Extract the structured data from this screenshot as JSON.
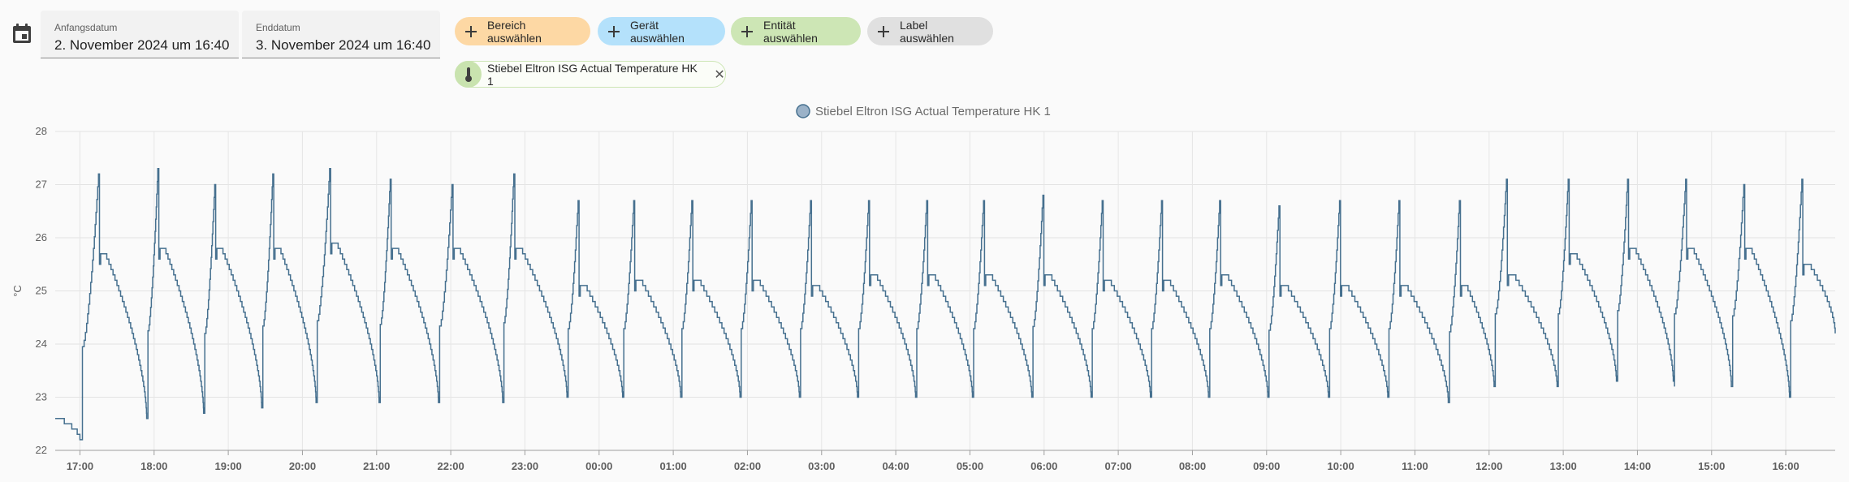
{
  "date_range": {
    "start_label": "Anfangsdatum",
    "start_value": "2. November 2024 um 16:40",
    "end_label": "Enddatum",
    "end_value": "3. November 2024 um 16:40"
  },
  "target_chips": {
    "area": "Bereich auswählen",
    "device": "Gerät auswählen",
    "entity": "Entität auswählen",
    "label": "Label auswählen"
  },
  "selected_entity": {
    "name": "Stiebel Eltron ISG Actual Temperature HK 1",
    "icon": "thermometer-icon",
    "remove_icon": "close-icon"
  },
  "colors": {
    "series": "#46708f",
    "area_chip": "#fdd8a4",
    "device_chip": "#b4e1fb",
    "entity_chip": "#cde6b5",
    "label_chip": "#e0e0e0"
  },
  "chart_data": {
    "type": "line",
    "legend_position": "top-center",
    "ylabel": "°C",
    "ylim": [
      22,
      28
    ],
    "yticks": [
      22,
      23,
      24,
      25,
      26,
      27,
      28
    ],
    "grid": true,
    "step": true,
    "x_start": "16:40",
    "x_end": "16:40",
    "xticks": [
      "17:00",
      "18:00",
      "19:00",
      "20:00",
      "21:00",
      "22:00",
      "23:00",
      "00:00",
      "01:00",
      "02:00",
      "03:00",
      "04:00",
      "05:00",
      "06:00",
      "07:00",
      "08:00",
      "09:00",
      "10:00",
      "11:00",
      "12:00",
      "13:00",
      "14:00",
      "15:00",
      "16:00"
    ],
    "series": [
      {
        "name": "Stiebel Eltron ISG Actual Temperature HK 1",
        "color": "#46708f",
        "x_start": "16:40",
        "trough_at_start": 22.6,
        "cycles": [
          {
            "rise": "17:02",
            "peak_time": "17:15",
            "low": 22.2,
            "peak": 27.2,
            "plateau": 25.7,
            "trough": 22.6
          },
          {
            "rise": "17:55",
            "peak_time": "18:03",
            "low": 22.6,
            "peak": 27.3,
            "plateau": 25.8,
            "trough": 22.7
          },
          {
            "rise": "18:41",
            "peak_time": "18:49",
            "low": 22.7,
            "peak": 27.0,
            "plateau": 25.8,
            "trough": 22.8
          },
          {
            "rise": "19:28",
            "peak_time": "19:36",
            "low": 22.8,
            "peak": 27.2,
            "plateau": 25.8,
            "trough": 22.9
          },
          {
            "rise": "20:12",
            "peak_time": "20:22",
            "low": 22.9,
            "peak": 27.3,
            "plateau": 25.9,
            "trough": 22.9
          },
          {
            "rise": "21:03",
            "peak_time": "21:11",
            "low": 22.9,
            "peak": 27.1,
            "plateau": 25.8,
            "trough": 22.9
          },
          {
            "rise": "21:51",
            "peak_time": "22:01",
            "low": 22.9,
            "peak": 27.0,
            "plateau": 25.8,
            "trough": 22.9
          },
          {
            "rise": "22:43",
            "peak_time": "22:51",
            "low": 22.9,
            "peak": 27.2,
            "plateau": 25.8,
            "trough": 23.0
          },
          {
            "rise": "23:35",
            "peak_time": "23:43",
            "low": 23.0,
            "peak": 26.7,
            "plateau": 25.1,
            "trough": 23.0
          },
          {
            "rise": "00:20",
            "peak_time": "00:28",
            "low": 23.0,
            "peak": 26.7,
            "plateau": 25.2,
            "trough": 23.0
          },
          {
            "rise": "01:07",
            "peak_time": "01:15",
            "low": 23.0,
            "peak": 26.7,
            "plateau": 25.2,
            "trough": 23.0
          },
          {
            "rise": "01:55",
            "peak_time": "02:03",
            "low": 23.0,
            "peak": 26.7,
            "plateau": 25.2,
            "trough": 23.0
          },
          {
            "rise": "02:43",
            "peak_time": "02:51",
            "low": 23.0,
            "peak": 26.7,
            "plateau": 25.1,
            "trough": 23.0
          },
          {
            "rise": "03:30",
            "peak_time": "03:38",
            "low": 23.0,
            "peak": 26.7,
            "plateau": 25.3,
            "trough": 23.0
          },
          {
            "rise": "04:17",
            "peak_time": "04:25",
            "low": 23.0,
            "peak": 26.7,
            "plateau": 25.3,
            "trough": 23.0
          },
          {
            "rise": "05:03",
            "peak_time": "05:11",
            "low": 23.0,
            "peak": 26.7,
            "plateau": 25.3,
            "trough": 23.0
          },
          {
            "rise": "05:51",
            "peak_time": "05:59",
            "low": 23.0,
            "peak": 26.8,
            "plateau": 25.3,
            "trough": 23.0
          },
          {
            "rise": "06:39",
            "peak_time": "06:47",
            "low": 23.0,
            "peak": 26.7,
            "plateau": 25.2,
            "trough": 23.0
          },
          {
            "rise": "07:27",
            "peak_time": "07:35",
            "low": 23.0,
            "peak": 26.7,
            "plateau": 25.2,
            "trough": 23.0
          },
          {
            "rise": "08:14",
            "peak_time": "08:22",
            "low": 23.0,
            "peak": 26.7,
            "plateau": 25.3,
            "trough": 23.0
          },
          {
            "rise": "09:02",
            "peak_time": "09:10",
            "low": 23.0,
            "peak": 26.6,
            "plateau": 25.1,
            "trough": 23.0
          },
          {
            "rise": "09:51",
            "peak_time": "09:59",
            "low": 23.0,
            "peak": 26.7,
            "plateau": 25.1,
            "trough": 23.0
          },
          {
            "rise": "10:39",
            "peak_time": "10:47",
            "low": 23.0,
            "peak": 26.7,
            "plateau": 25.1,
            "trough": 22.9
          },
          {
            "rise": "11:28",
            "peak_time": "11:36",
            "low": 22.9,
            "peak": 26.7,
            "plateau": 25.1,
            "trough": 23.2
          },
          {
            "rise": "12:05",
            "peak_time": "12:14",
            "low": 23.2,
            "peak": 27.1,
            "plateau": 25.3,
            "trough": 23.2
          },
          {
            "rise": "12:56",
            "peak_time": "13:04",
            "low": 23.2,
            "peak": 27.1,
            "plateau": 25.7,
            "trough": 23.3
          },
          {
            "rise": "13:44",
            "peak_time": "13:52",
            "low": 23.3,
            "peak": 27.1,
            "plateau": 25.8,
            "trough": 23.3
          },
          {
            "rise": "14:30",
            "peak_time": "14:39",
            "low": 23.2,
            "peak": 27.1,
            "plateau": 25.8,
            "trough": 23.2
          },
          {
            "rise": "15:17",
            "peak_time": "15:26",
            "low": 23.2,
            "peak": 27.0,
            "plateau": 25.8,
            "trough": 23.0
          },
          {
            "rise": "16:04",
            "peak_time": "16:13",
            "low": 23.0,
            "peak": 27.1,
            "plateau": 25.5,
            "trough": 24.2
          }
        ],
        "end_value": 24.2
      }
    ]
  }
}
